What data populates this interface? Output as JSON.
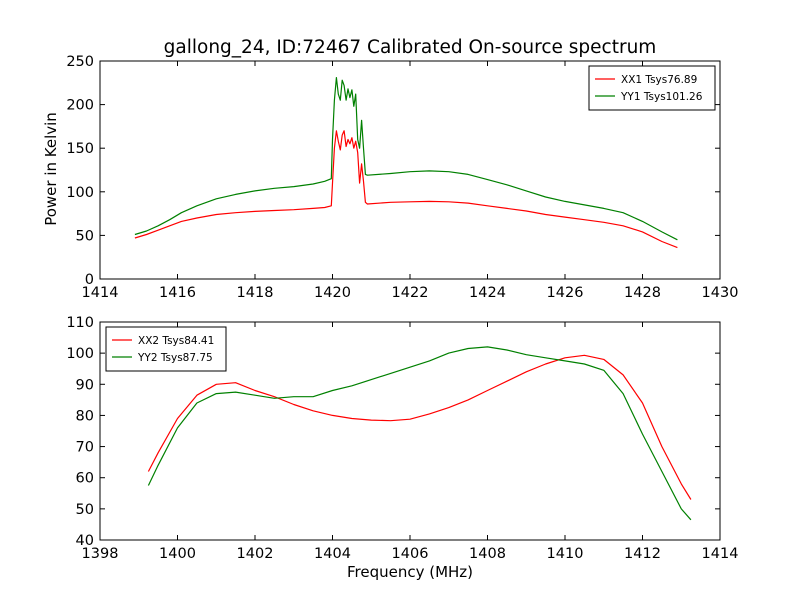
{
  "figure": {
    "title": "gallong_24, ID:72467 Calibrated On-source spectrum",
    "shared_xlabel": "Frequency (MHz)"
  },
  "chart_data": [
    {
      "type": "line",
      "title": "gallong_24, ID:72467 Calibrated On-source spectrum",
      "xlabel": "",
      "ylabel": "Power in Kelvin",
      "xlim": [
        1414,
        1430
      ],
      "ylim": [
        0,
        250
      ],
      "xticks": [
        "1414",
        "1416",
        "1418",
        "1420",
        "1422",
        "1424",
        "1426",
        "1428",
        "1430"
      ],
      "yticks": [
        "0",
        "50",
        "100",
        "150",
        "200",
        "250"
      ],
      "grid": false,
      "legend_position": "top-right",
      "series": [
        {
          "name": "XX1 Tsys76.89",
          "color": "#ff0000",
          "points": [
            [
              1414.9,
              47
            ],
            [
              1415.2,
              51
            ],
            [
              1415.5,
              56
            ],
            [
              1415.8,
              61
            ],
            [
              1416.1,
              66
            ],
            [
              1416.5,
              70
            ],
            [
              1417,
              74
            ],
            [
              1417.5,
              76
            ],
            [
              1418,
              77.5
            ],
            [
              1418.5,
              78.5
            ],
            [
              1419,
              79.5
            ],
            [
              1419.5,
              81
            ],
            [
              1419.8,
              82
            ],
            [
              1419.97,
              84
            ],
            [
              1420.0,
              110
            ],
            [
              1420.05,
              150
            ],
            [
              1420.1,
              170
            ],
            [
              1420.15,
              158
            ],
            [
              1420.2,
              148
            ],
            [
              1420.25,
              165
            ],
            [
              1420.3,
              170
            ],
            [
              1420.35,
              152
            ],
            [
              1420.4,
              160
            ],
            [
              1420.45,
              155
            ],
            [
              1420.5,
              162
            ],
            [
              1420.55,
              150
            ],
            [
              1420.6,
              158
            ],
            [
              1420.65,
              145
            ],
            [
              1420.7,
              110
            ],
            [
              1420.75,
              132
            ],
            [
              1420.8,
              112
            ],
            [
              1420.85,
              88
            ],
            [
              1420.9,
              86
            ],
            [
              1421.5,
              88
            ],
            [
              1422,
              88.5
            ],
            [
              1422.5,
              89
            ],
            [
              1423,
              88.5
            ],
            [
              1423.5,
              87
            ],
            [
              1424,
              84
            ],
            [
              1424.5,
              81
            ],
            [
              1425,
              78
            ],
            [
              1425.5,
              74
            ],
            [
              1426,
              71
            ],
            [
              1426.5,
              68
            ],
            [
              1427,
              65
            ],
            [
              1427.5,
              61
            ],
            [
              1428,
              54
            ],
            [
              1428.5,
              43
            ],
            [
              1428.9,
              36
            ]
          ]
        },
        {
          "name": "YY1 Tsys101.26",
          "color": "#008000",
          "points": [
            [
              1414.9,
              51
            ],
            [
              1415.2,
              55
            ],
            [
              1415.5,
              61
            ],
            [
              1415.8,
              68
            ],
            [
              1416.1,
              76
            ],
            [
              1416.5,
              84
            ],
            [
              1417,
              92
            ],
            [
              1417.5,
              97
            ],
            [
              1418,
              101
            ],
            [
              1418.5,
              104
            ],
            [
              1419,
              106
            ],
            [
              1419.5,
              109
            ],
            [
              1419.8,
              112
            ],
            [
              1419.97,
              115
            ],
            [
              1420.0,
              160
            ],
            [
              1420.05,
              205
            ],
            [
              1420.1,
              231
            ],
            [
              1420.15,
              212
            ],
            [
              1420.2,
              205
            ],
            [
              1420.25,
              228
            ],
            [
              1420.3,
              222
            ],
            [
              1420.35,
              205
            ],
            [
              1420.4,
              218
            ],
            [
              1420.45,
              208
            ],
            [
              1420.5,
              217
            ],
            [
              1420.55,
              198
            ],
            [
              1420.6,
              212
            ],
            [
              1420.65,
              160
            ],
            [
              1420.7,
              150
            ],
            [
              1420.75,
              182
            ],
            [
              1420.8,
              150
            ],
            [
              1420.85,
              120
            ],
            [
              1420.9,
              119
            ],
            [
              1421.5,
              121
            ],
            [
              1422,
              123
            ],
            [
              1422.5,
              124
            ],
            [
              1423,
              123
            ],
            [
              1423.5,
              120
            ],
            [
              1424,
              114
            ],
            [
              1424.5,
              108
            ],
            [
              1425,
              101
            ],
            [
              1425.5,
              94
            ],
            [
              1426,
              89
            ],
            [
              1426.5,
              85
            ],
            [
              1427,
              81
            ],
            [
              1427.5,
              76
            ],
            [
              1428,
              66
            ],
            [
              1428.5,
              54
            ],
            [
              1428.9,
              45
            ]
          ]
        }
      ]
    },
    {
      "type": "line",
      "title": "",
      "xlabel": "Frequency (MHz)",
      "ylabel": "",
      "xlim": [
        1398,
        1414
      ],
      "ylim": [
        40,
        110
      ],
      "xticks": [
        "1398",
        "1400",
        "1402",
        "1404",
        "1406",
        "1408",
        "1410",
        "1412",
        "1414"
      ],
      "yticks": [
        "40",
        "50",
        "60",
        "70",
        "80",
        "90",
        "100",
        "110"
      ],
      "grid": false,
      "legend_position": "top-left",
      "series": [
        {
          "name": "XX2 Tsys84.41",
          "color": "#ff0000",
          "points": [
            [
              1399.25,
              62
            ],
            [
              1399.5,
              68
            ],
            [
              1400,
              79
            ],
            [
              1400.5,
              86.5
            ],
            [
              1401,
              90
            ],
            [
              1401.5,
              90.5
            ],
            [
              1402,
              88
            ],
            [
              1402.5,
              86
            ],
            [
              1403,
              83.5
            ],
            [
              1403.5,
              81.5
            ],
            [
              1404,
              80
            ],
            [
              1404.5,
              79
            ],
            [
              1405,
              78.5
            ],
            [
              1405.5,
              78.3
            ],
            [
              1406,
              78.8
            ],
            [
              1406.5,
              80.5
            ],
            [
              1407,
              82.5
            ],
            [
              1407.5,
              85
            ],
            [
              1408,
              88
            ],
            [
              1408.5,
              91
            ],
            [
              1409,
              94
            ],
            [
              1409.5,
              96.5
            ],
            [
              1410,
              98.5
            ],
            [
              1410.5,
              99.3
            ],
            [
              1411,
              98
            ],
            [
              1411.5,
              93
            ],
            [
              1412,
              84
            ],
            [
              1412.5,
              70
            ],
            [
              1413,
              58
            ],
            [
              1413.25,
              53
            ]
          ]
        },
        {
          "name": "YY2 Tsys87.75",
          "color": "#008000",
          "points": [
            [
              1399.25,
              57.5
            ],
            [
              1399.5,
              64
            ],
            [
              1400,
              76
            ],
            [
              1400.5,
              84
            ],
            [
              1401,
              87
            ],
            [
              1401.5,
              87.5
            ],
            [
              1402,
              86.5
            ],
            [
              1402.5,
              85.5
            ],
            [
              1403,
              86
            ],
            [
              1403.5,
              86
            ],
            [
              1404,
              88
            ],
            [
              1404.5,
              89.5
            ],
            [
              1405,
              91.5
            ],
            [
              1405.5,
              93.5
            ],
            [
              1406,
              95.5
            ],
            [
              1406.5,
              97.5
            ],
            [
              1407,
              100
            ],
            [
              1407.5,
              101.5
            ],
            [
              1408,
              102
            ],
            [
              1408.5,
              101
            ],
            [
              1409,
              99.5
            ],
            [
              1409.5,
              98.5
            ],
            [
              1410,
              97.5
            ],
            [
              1410.5,
              96.5
            ],
            [
              1411,
              94.5
            ],
            [
              1411.5,
              87
            ],
            [
              1412,
              74
            ],
            [
              1412.5,
              62
            ],
            [
              1413,
              50
            ],
            [
              1413.25,
              46.5
            ]
          ]
        }
      ]
    }
  ]
}
